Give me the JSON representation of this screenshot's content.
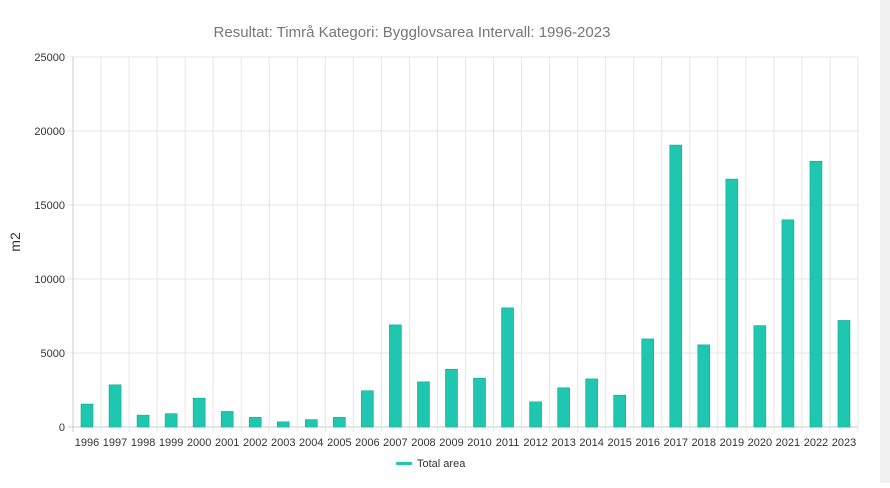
{
  "chart_data": {
    "type": "bar",
    "title": "Resultat: Timrå Kategori: Bygglovsarea Intervall: 1996-2023",
    "xlabel": "",
    "ylabel": "m2",
    "ylim": [
      0,
      25000
    ],
    "yticks": [
      "0",
      "5000",
      "10000",
      "15000",
      "20000",
      "25000"
    ],
    "grid": true,
    "legend_position": "bottom-center",
    "categories": [
      "1996",
      "1997",
      "1998",
      "1999",
      "2000",
      "2001",
      "2002",
      "2003",
      "2004",
      "2005",
      "2006",
      "2007",
      "2008",
      "2009",
      "2010",
      "2011",
      "2012",
      "2013",
      "2014",
      "2015",
      "2016",
      "2017",
      "2018",
      "2019",
      "2020",
      "2021",
      "2022",
      "2023"
    ],
    "series": [
      {
        "name": "Total area",
        "color": "#1fc7b1",
        "values": [
          1550,
          2850,
          800,
          900,
          1950,
          1050,
          650,
          350,
          500,
          650,
          2450,
          6900,
          3050,
          3900,
          3300,
          8050,
          1700,
          2650,
          3250,
          2150,
          5950,
          19050,
          5550,
          16750,
          6850,
          14000,
          17950,
          7200
        ]
      }
    ]
  }
}
